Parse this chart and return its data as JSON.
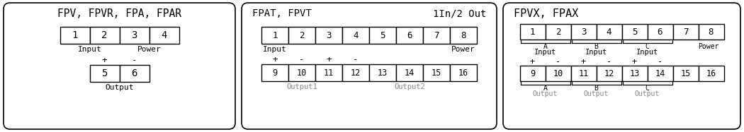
{
  "bg_color": "#ffffff",
  "border_color": "#000000",
  "text_color": "#000000",
  "gray_text_color": "#888888",
  "font_family": "monospace",
  "panel1": {
    "title": "FPV, FPVR, FPA, FPAR",
    "row1_labels": [
      "1",
      "2",
      "3",
      "4"
    ],
    "row2_signs": [
      "+",
      "-"
    ],
    "row2_labels": [
      "5",
      "6"
    ]
  },
  "panel2": {
    "title_left": "FPAT, FPVT",
    "title_right": "1In/2 Out",
    "row1_labels": [
      "1",
      "2",
      "3",
      "4",
      "5",
      "6",
      "7",
      "8"
    ],
    "row2_signs": [
      "+",
      "-",
      "+",
      "-"
    ],
    "row2_labels": [
      "9",
      "10",
      "11",
      "12",
      "13",
      "14",
      "15",
      "16"
    ]
  },
  "panel3": {
    "title": "FPVX, FPAX",
    "row1_labels": [
      "1",
      "2",
      "3",
      "4",
      "5",
      "6",
      "7",
      "8"
    ],
    "row2_signs": [
      "+",
      "-",
      "+",
      "-",
      "+",
      "-"
    ],
    "row2_labels": [
      "9",
      "10",
      "11",
      "12",
      "13",
      "14",
      "15",
      "16"
    ]
  }
}
